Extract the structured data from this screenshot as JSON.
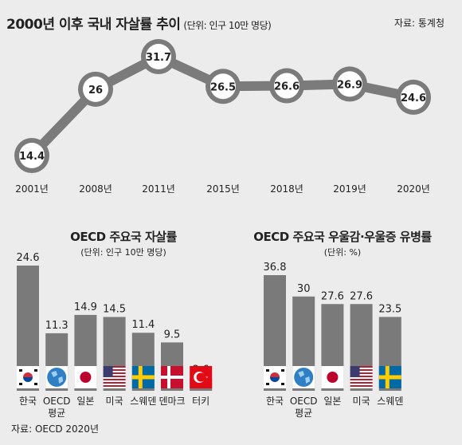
{
  "header": {
    "title": "2000년 이후 국내 자살률 추이",
    "unit": "(단위: 인구 10만 명당)",
    "source": "자료: 통계청"
  },
  "colors": {
    "background": "#ececec",
    "bar": "#7a7a7a",
    "line": "#7b7b7b",
    "marker_fill": "#ffffff",
    "text": "#222222"
  },
  "chart_data": [
    {
      "type": "line",
      "title": "2000년 이후 국내 자살률 추이",
      "unit": "(단위: 인구 10만 명당)",
      "x": [
        "2001년",
        "2008년",
        "2011년",
        "2015년",
        "2018년",
        "2019년",
        "2020년"
      ],
      "y": [
        14.4,
        26,
        31.7,
        26.5,
        26.6,
        26.9,
        24.6
      ],
      "value_labels": [
        "14.4",
        "26",
        "31.7",
        "26.5",
        "26.6",
        "26.9",
        "24.6"
      ],
      "ylim": [
        14.4,
        31.7
      ],
      "grid": false
    },
    {
      "type": "bar",
      "title": "OECD 주요국 자살률",
      "unit": "(단위: 인구 10만 명당)",
      "categories": [
        [
          "한국"
        ],
        [
          "OECD",
          "평균"
        ],
        [
          "일본"
        ],
        [
          "미국"
        ],
        [
          "스웨덴"
        ],
        [
          "덴마크"
        ],
        [
          "터키"
        ]
      ],
      "flags": [
        "korea-flag-icon",
        "globe-icon",
        "japan-flag-icon",
        "usa-flag-icon",
        "sweden-flag-icon",
        "denmark-flag-icon",
        "turkey-flag-icon"
      ],
      "values": [
        24.6,
        11.3,
        14.9,
        14.5,
        11.4,
        9.5,
        2.6
      ],
      "value_labels": [
        "24.6",
        "11.3",
        "14.9",
        "14.5",
        "11.4",
        "9.5",
        "2.6"
      ],
      "ylim": [
        0,
        24.6
      ],
      "source": "자료: OECD 2020년"
    },
    {
      "type": "bar",
      "title": "OECD 주요국 우울감·우울증 유병률",
      "unit": "(단위: %)",
      "categories": [
        [
          "한국"
        ],
        [
          "OECD",
          "평균"
        ],
        [
          "일본"
        ],
        [
          "미국"
        ],
        [
          "스웨덴"
        ]
      ],
      "flags": [
        "korea-flag-icon",
        "globe-icon",
        "japan-flag-icon",
        "usa-flag-icon",
        "sweden-flag-icon"
      ],
      "values": [
        36.8,
        30,
        27.6,
        27.6,
        23.5
      ],
      "value_labels": [
        "36.8",
        "30",
        "27.6",
        "27.6",
        "23.5"
      ],
      "ylim": [
        0,
        36.8
      ]
    }
  ]
}
